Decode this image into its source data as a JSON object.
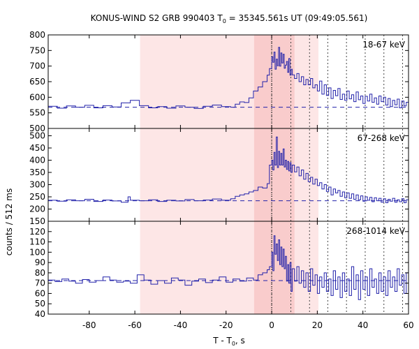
{
  "chart_data": {
    "type": "line",
    "title": {
      "prefix": "KONUS-WIND S2 GRB 990403 T",
      "subscript": "0",
      "suffix": " = 35345.561s UT (09:49:05.561)"
    },
    "xlabel": {
      "prefix": "T - T",
      "subscript": "0",
      "suffix": ", s"
    },
    "ylabel": "counts / 512 ms",
    "xlim": [
      -98,
      60
    ],
    "x_ticks": [
      -80,
      -60,
      -40,
      -20,
      0,
      20,
      40,
      60
    ],
    "grid": false,
    "shaded_regions": [
      {
        "x0": -57.7,
        "x1": 20.5,
        "color": "#fde6e6"
      },
      {
        "x0": -7.7,
        "x1": 10.0,
        "color": "#f9cccc"
      }
    ],
    "vertical_markers": {
      "solid": [
        0.0
      ],
      "dotted": [
        0.0,
        8.4,
        16.6,
        24.6,
        32.8,
        41.0,
        49.2,
        57.4
      ]
    },
    "panels": [
      {
        "band": "18-67 keV",
        "ylim": [
          500,
          800
        ],
        "y_ticks": [
          500,
          550,
          600,
          650,
          700,
          750,
          800
        ],
        "background": 568,
        "step_points": [
          [
            -98,
            571
          ],
          [
            -94,
            565
          ],
          [
            -90,
            572
          ],
          [
            -86,
            568
          ],
          [
            -82,
            574
          ],
          [
            -78,
            566
          ],
          [
            -74,
            573
          ],
          [
            -70,
            569
          ],
          [
            -66,
            582
          ],
          [
            -62,
            590
          ],
          [
            -58,
            573
          ],
          [
            -54,
            566
          ],
          [
            -50,
            570
          ],
          [
            -46,
            565
          ],
          [
            -42,
            572
          ],
          [
            -38,
            568
          ],
          [
            -34,
            564
          ],
          [
            -30,
            571
          ],
          [
            -26,
            575
          ],
          [
            -22,
            570
          ],
          [
            -18,
            568
          ],
          [
            -16,
            578
          ],
          [
            -14,
            585
          ],
          [
            -12,
            583
          ],
          [
            -10,
            598
          ],
          [
            -8,
            620
          ],
          [
            -6,
            633
          ],
          [
            -4,
            650
          ],
          [
            -2,
            671
          ],
          [
            -1,
            692
          ],
          [
            0,
            730
          ],
          [
            0.5,
            712
          ],
          [
            1,
            745
          ],
          [
            1.5,
            690
          ],
          [
            2,
            722
          ],
          [
            2.5,
            701
          ],
          [
            3,
            760
          ],
          [
            3.5,
            700
          ],
          [
            4,
            742
          ],
          [
            4.5,
            710
          ],
          [
            5,
            738
          ],
          [
            5.5,
            693
          ],
          [
            6,
            703
          ],
          [
            6.5,
            715
          ],
          [
            7,
            680
          ],
          [
            7.5,
            724
          ],
          [
            8,
            671
          ],
          [
            8.5,
            690
          ],
          [
            9,
            672
          ],
          [
            10,
            660
          ],
          [
            11,
            676
          ],
          [
            12,
            650
          ],
          [
            13,
            666
          ],
          [
            14,
            640
          ],
          [
            15,
            657
          ],
          [
            16,
            640
          ],
          [
            17,
            660
          ],
          [
            18,
            630
          ],
          [
            19,
            640
          ],
          [
            20,
            620
          ],
          [
            21,
            652
          ],
          [
            22,
            610
          ],
          [
            23,
            640
          ],
          [
            24,
            606
          ],
          [
            25,
            630
          ],
          [
            26,
            596
          ],
          [
            27,
            622
          ],
          [
            28,
            605
          ],
          [
            29,
            628
          ],
          [
            30,
            593
          ],
          [
            31,
            610
          ],
          [
            32,
            590
          ],
          [
            33,
            620
          ],
          [
            34,
            595
          ],
          [
            35,
            608
          ],
          [
            36,
            586
          ],
          [
            37,
            617
          ],
          [
            38,
            592
          ],
          [
            39,
            604
          ],
          [
            40,
            580
          ],
          [
            41,
            603
          ],
          [
            42,
            588
          ],
          [
            43,
            610
          ],
          [
            44,
            584
          ],
          [
            45,
            598
          ],
          [
            46,
            578
          ],
          [
            47,
            604
          ],
          [
            48,
            586
          ],
          [
            49,
            600
          ],
          [
            50,
            575
          ],
          [
            51,
            596
          ],
          [
            52,
            570
          ],
          [
            53,
            590
          ],
          [
            54,
            576
          ],
          [
            55,
            594
          ],
          [
            56,
            566
          ],
          [
            57,
            588
          ],
          [
            58,
            572
          ],
          [
            59,
            584
          ],
          [
            60,
            578
          ]
        ]
      },
      {
        "band": "67-268 keV",
        "ylim": [
          150,
          530
        ],
        "y_ticks": [
          150,
          200,
          250,
          300,
          350,
          400,
          450,
          500
        ],
        "background": 234,
        "step_points": [
          [
            -98,
            236
          ],
          [
            -94,
            232
          ],
          [
            -90,
            238
          ],
          [
            -86,
            234
          ],
          [
            -82,
            240
          ],
          [
            -78,
            231
          ],
          [
            -74,
            237
          ],
          [
            -70,
            233
          ],
          [
            -66,
            228
          ],
          [
            -63,
            250
          ],
          [
            -62,
            236
          ],
          [
            -58,
            234
          ],
          [
            -54,
            238
          ],
          [
            -50,
            231
          ],
          [
            -46,
            236
          ],
          [
            -42,
            233
          ],
          [
            -38,
            239
          ],
          [
            -34,
            234
          ],
          [
            -30,
            237
          ],
          [
            -26,
            241
          ],
          [
            -22,
            236
          ],
          [
            -18,
            242
          ],
          [
            -16,
            252
          ],
          [
            -14,
            258
          ],
          [
            -12,
            262
          ],
          [
            -10,
            270
          ],
          [
            -8,
            276
          ],
          [
            -6,
            290
          ],
          [
            -4,
            286
          ],
          [
            -2,
            304
          ],
          [
            -1,
            380
          ],
          [
            0,
            400
          ],
          [
            0.5,
            360
          ],
          [
            1,
            432
          ],
          [
            1.5,
            380
          ],
          [
            2,
            495
          ],
          [
            2.5,
            370
          ],
          [
            3,
            436
          ],
          [
            3.5,
            380
          ],
          [
            4,
            428
          ],
          [
            4.5,
            380
          ],
          [
            5,
            446
          ],
          [
            5.5,
            372
          ],
          [
            6,
            400
          ],
          [
            6.5,
            362
          ],
          [
            7,
            395
          ],
          [
            7.5,
            356
          ],
          [
            8,
            390
          ],
          [
            8.5,
            350
          ],
          [
            9,
            380
          ],
          [
            10,
            352
          ],
          [
            11,
            372
          ],
          [
            12,
            336
          ],
          [
            13,
            360
          ],
          [
            14,
            322
          ],
          [
            15,
            346
          ],
          [
            16,
            312
          ],
          [
            17,
            330
          ],
          [
            18,
            302
          ],
          [
            19,
            322
          ],
          [
            20,
            296
          ],
          [
            21,
            308
          ],
          [
            22,
            282
          ],
          [
            23,
            300
          ],
          [
            24,
            272
          ],
          [
            25,
            290
          ],
          [
            26,
            258
          ],
          [
            27,
            282
          ],
          [
            28,
            266
          ],
          [
            29,
            276
          ],
          [
            30,
            252
          ],
          [
            31,
            270
          ],
          [
            32,
            246
          ],
          [
            33,
            266
          ],
          [
            34,
            244
          ],
          [
            35,
            262
          ],
          [
            36,
            240
          ],
          [
            37,
            258
          ],
          [
            38,
            238
          ],
          [
            39,
            254
          ],
          [
            40,
            232
          ],
          [
            41,
            250
          ],
          [
            42,
            236
          ],
          [
            43,
            248
          ],
          [
            44,
            230
          ],
          [
            45,
            246
          ],
          [
            46,
            234
          ],
          [
            47,
            244
          ],
          [
            48,
            228
          ],
          [
            49,
            242
          ],
          [
            50,
            226
          ],
          [
            51,
            240
          ],
          [
            52,
            232
          ],
          [
            53,
            244
          ],
          [
            54,
            228
          ],
          [
            55,
            238
          ],
          [
            56,
            230
          ],
          [
            57,
            242
          ],
          [
            58,
            226
          ],
          [
            59,
            238
          ],
          [
            60,
            232
          ]
        ]
      },
      {
        "band": "268-1014 keV",
        "ylim": [
          40,
          130
        ],
        "y_ticks": [
          40,
          50,
          60,
          70,
          80,
          90,
          100,
          110,
          120
        ],
        "background": 72.5,
        "step_points": [
          [
            -98,
            73
          ],
          [
            -95,
            71.5
          ],
          [
            -92,
            74
          ],
          [
            -89,
            72
          ],
          [
            -86,
            70
          ],
          [
            -83,
            73.5
          ],
          [
            -80,
            71
          ],
          [
            -77,
            72.5
          ],
          [
            -74,
            76
          ],
          [
            -71,
            73
          ],
          [
            -68,
            71
          ],
          [
            -65,
            72
          ],
          [
            -62,
            70
          ],
          [
            -59,
            78
          ],
          [
            -56,
            73
          ],
          [
            -53,
            69
          ],
          [
            -50,
            72.5
          ],
          [
            -47,
            70
          ],
          [
            -44,
            75
          ],
          [
            -41,
            73
          ],
          [
            -38,
            68
          ],
          [
            -35,
            72
          ],
          [
            -32,
            74
          ],
          [
            -29,
            70.5
          ],
          [
            -26,
            73
          ],
          [
            -23,
            76
          ],
          [
            -20,
            71
          ],
          [
            -17,
            74
          ],
          [
            -14,
            72
          ],
          [
            -11,
            75
          ],
          [
            -8,
            73
          ],
          [
            -6,
            78
          ],
          [
            -4,
            80
          ],
          [
            -2,
            83
          ],
          [
            -1,
            86
          ],
          [
            0,
            100
          ],
          [
            0.5,
            82
          ],
          [
            1,
            116
          ],
          [
            1.5,
            98
          ],
          [
            2,
            108
          ],
          [
            2.5,
            92
          ],
          [
            3,
            112
          ],
          [
            3.5,
            88
          ],
          [
            4,
            105
          ],
          [
            4.5,
            86
          ],
          [
            5,
            103
          ],
          [
            5.5,
            84
          ],
          [
            6,
            96
          ],
          [
            6.5,
            72
          ],
          [
            7,
            88
          ],
          [
            7.5,
            70
          ],
          [
            8,
            90
          ],
          [
            8.5,
            62
          ],
          [
            9,
            84
          ],
          [
            10,
            72
          ],
          [
            11,
            86
          ],
          [
            12,
            70
          ],
          [
            13,
            82
          ],
          [
            14,
            66
          ],
          [
            15,
            80
          ],
          [
            16,
            62
          ],
          [
            17,
            84
          ],
          [
            18,
            68
          ],
          [
            19,
            78
          ],
          [
            20,
            60
          ],
          [
            21,
            76
          ],
          [
            22,
            66
          ],
          [
            23,
            80
          ],
          [
            24,
            62
          ],
          [
            25,
            74
          ],
          [
            26,
            58
          ],
          [
            27,
            82
          ],
          [
            28,
            64
          ],
          [
            29,
            76
          ],
          [
            30,
            56
          ],
          [
            31,
            80
          ],
          [
            32,
            62
          ],
          [
            33,
            74
          ],
          [
            34,
            58
          ],
          [
            35,
            86
          ],
          [
            36,
            64
          ],
          [
            37,
            78
          ],
          [
            38,
            54
          ],
          [
            39,
            82
          ],
          [
            40,
            64
          ],
          [
            41,
            76
          ],
          [
            42,
            58
          ],
          [
            43,
            84
          ],
          [
            44,
            66
          ],
          [
            45,
            74
          ],
          [
            46,
            60
          ],
          [
            47,
            80
          ],
          [
            48,
            62
          ],
          [
            49,
            76
          ],
          [
            50,
            58
          ],
          [
            51,
            82
          ],
          [
            52,
            66
          ],
          [
            53,
            76
          ],
          [
            54,
            62
          ],
          [
            55,
            84
          ],
          [
            56,
            68
          ],
          [
            57,
            78
          ],
          [
            58,
            60
          ],
          [
            59,
            80
          ],
          [
            60,
            72
          ]
        ]
      }
    ],
    "colors": {
      "data_line": "#2222aa",
      "background_line": "#2222aa",
      "markers": "#444444"
    }
  }
}
